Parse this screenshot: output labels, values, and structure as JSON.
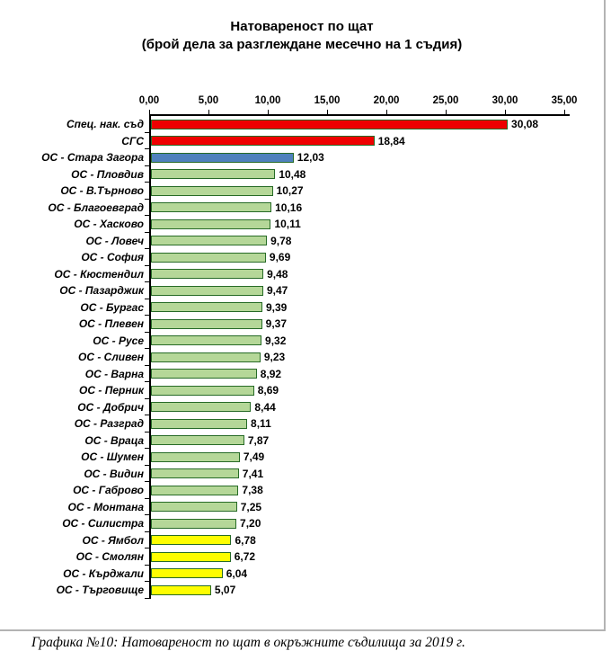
{
  "title": {
    "line1": "Натовареност по щат",
    "line2": "(брой дела за разглеждане месечно на 1 съдия)"
  },
  "caption": "Графика №10: Натовареност по щат в окръжните съдилища за 2019 г.",
  "chart_data": {
    "type": "bar",
    "orientation": "horizontal",
    "title": "Натовареност по щат (брой дела за разглеждане месечно на 1 съдия)",
    "xlim": [
      0,
      35
    ],
    "x_tick_step": 5,
    "x_tick_labels": [
      "0,00",
      "5,00",
      "10,00",
      "15,00",
      "20,00",
      "25,00",
      "30,00",
      "35,00"
    ],
    "grid": false,
    "legend": false,
    "colors": {
      "red": "#ee0000",
      "blue": "#4f81bd",
      "green": "#b5d798",
      "yellow": "#fdfd00",
      "bar_border": "#276b27",
      "axis": "#000000",
      "frame_border": "#b3b3b3"
    },
    "bars": [
      {
        "category": "Спец. нак. съд",
        "value": 30.08,
        "label": "30,08",
        "color": "red"
      },
      {
        "category": "СГС",
        "value": 18.84,
        "label": "18,84",
        "color": "red"
      },
      {
        "category": "ОС - Стара Загора",
        "value": 12.03,
        "label": "12,03",
        "color": "blue"
      },
      {
        "category": "ОС - Пловдив",
        "value": 10.48,
        "label": "10,48",
        "color": "green"
      },
      {
        "category": "ОС - В.Търново",
        "value": 10.27,
        "label": "10,27",
        "color": "green"
      },
      {
        "category": "ОС - Благоевград",
        "value": 10.16,
        "label": "10,16",
        "color": "green"
      },
      {
        "category": "ОС - Хасково",
        "value": 10.11,
        "label": "10,11",
        "color": "green"
      },
      {
        "category": "ОС - Ловеч",
        "value": 9.78,
        "label": "9,78",
        "color": "green"
      },
      {
        "category": "ОС - София",
        "value": 9.69,
        "label": "9,69",
        "color": "green"
      },
      {
        "category": "ОС - Кюстендил",
        "value": 9.48,
        "label": "9,48",
        "color": "green"
      },
      {
        "category": "ОС - Пазарджик",
        "value": 9.47,
        "label": "9,47",
        "color": "green"
      },
      {
        "category": "ОС - Бургас",
        "value": 9.39,
        "label": "9,39",
        "color": "green"
      },
      {
        "category": "ОС - Плевен",
        "value": 9.37,
        "label": "9,37",
        "color": "green"
      },
      {
        "category": "ОС - Русе",
        "value": 9.32,
        "label": "9,32",
        "color": "green"
      },
      {
        "category": "ОС - Сливен",
        "value": 9.23,
        "label": "9,23",
        "color": "green"
      },
      {
        "category": "ОС - Варна",
        "value": 8.92,
        "label": "8,92",
        "color": "green"
      },
      {
        "category": "ОС - Перник",
        "value": 8.69,
        "label": "8,69",
        "color": "green"
      },
      {
        "category": "ОС - Добрич",
        "value": 8.44,
        "label": "8,44",
        "color": "green"
      },
      {
        "category": "ОС - Разград",
        "value": 8.11,
        "label": "8,11",
        "color": "green"
      },
      {
        "category": "ОС - Враца",
        "value": 7.87,
        "label": "7,87",
        "color": "green"
      },
      {
        "category": "ОС - Шумен",
        "value": 7.49,
        "label": "7,49",
        "color": "green"
      },
      {
        "category": "ОС - Видин",
        "value": 7.41,
        "label": "7,41",
        "color": "green"
      },
      {
        "category": "ОС - Габрово",
        "value": 7.38,
        "label": "7,38",
        "color": "green"
      },
      {
        "category": "ОС - Монтана",
        "value": 7.25,
        "label": "7,25",
        "color": "green"
      },
      {
        "category": "ОС - Силистра",
        "value": 7.2,
        "label": "7,20",
        "color": "green"
      },
      {
        "category": "ОС - Ямбол",
        "value": 6.78,
        "label": "6,78",
        "color": "yellow"
      },
      {
        "category": "ОС - Смолян",
        "value": 6.72,
        "label": "6,72",
        "color": "yellow"
      },
      {
        "category": "ОС - Кърджали",
        "value": 6.04,
        "label": "6,04",
        "color": "yellow"
      },
      {
        "category": "ОС - Търговище",
        "value": 5.07,
        "label": "5,07",
        "color": "yellow"
      }
    ]
  }
}
